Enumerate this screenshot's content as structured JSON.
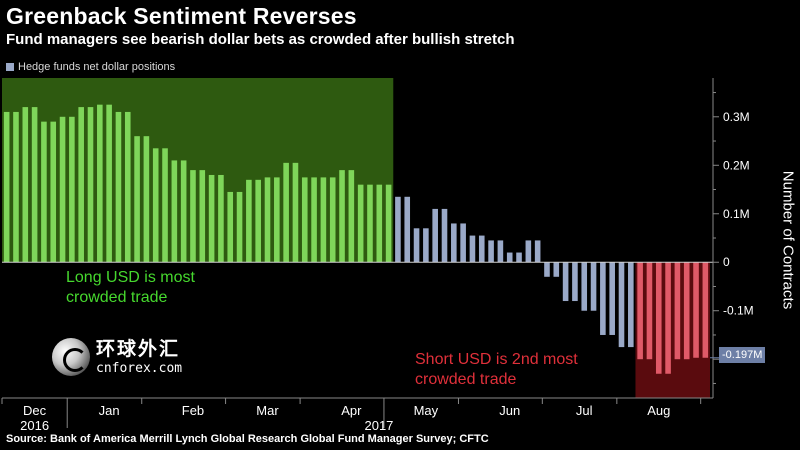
{
  "title": "Greenback Sentiment Reverses",
  "subtitle": "Fund managers see bearish dollar bets as crowded after bullish stretch",
  "legend": {
    "label": "Hedge funds net dollar positions",
    "color": "#9aa9c8"
  },
  "y_axis_label": "Number of Contracts",
  "source": "Source: Bank of America Merrill Lynch Global Research Global Fund Manager Survey; CFTC",
  "annotations": {
    "long": {
      "line1": "Long USD is most",
      "line2": "crowded trade",
      "color": "#46d82e",
      "shade": "#2e5a10"
    },
    "short": {
      "line1": "Short USD is 2nd most",
      "line2": "crowded trade",
      "color": "#e0303a",
      "shade": "#5a0b0e"
    }
  },
  "last_value_tag": "-0.197M",
  "logo": {
    "cn": "环球外汇",
    "en": "cnforex.com"
  },
  "colors": {
    "bar_long_period": "#7fd65a",
    "bar_neutral": "#9aa9c8",
    "bar_short_period": "#e05a68",
    "axis": "#888888",
    "background": "#000000"
  },
  "chart_data": {
    "type": "bar",
    "title": "Greenback Sentiment Reverses",
    "subtitle": "Fund managers see bearish dollar bets as crowded after bullish stretch",
    "ylabel": "Number of Contracts",
    "xlabel": "",
    "ylim": [
      -0.28,
      0.38
    ],
    "y_ticks": [
      {
        "value": 0.3,
        "label": "0.3M"
      },
      {
        "value": 0.2,
        "label": "0.2M"
      },
      {
        "value": 0.1,
        "label": "0.1M"
      },
      {
        "value": 0,
        "label": "0"
      },
      {
        "value": -0.1,
        "label": "-0.1M"
      },
      {
        "value": -0.2,
        "label": "-0.2M"
      }
    ],
    "x_ticks": [
      {
        "label": "Dec",
        "sub": "2016",
        "index": 3
      },
      {
        "label": "Jan",
        "sub": "",
        "index": 11
      },
      {
        "label": "Feb",
        "sub": "",
        "index": 20
      },
      {
        "label": "Mar",
        "sub": "",
        "index": 28
      },
      {
        "label": "Apr",
        "sub": "2017",
        "index": 37
      },
      {
        "label": "May",
        "sub": "",
        "index": 45
      },
      {
        "label": "Jun",
        "sub": "",
        "index": 54
      },
      {
        "label": "Jul",
        "sub": "",
        "index": 62
      },
      {
        "label": "Aug",
        "sub": "",
        "index": 70
      }
    ],
    "series": [
      {
        "name": "Hedge funds net dollar positions",
        "values": [
          0.31,
          0.31,
          0.32,
          0.32,
          0.29,
          0.29,
          0.3,
          0.3,
          0.32,
          0.32,
          0.325,
          0.325,
          0.31,
          0.31,
          0.26,
          0.26,
          0.235,
          0.235,
          0.21,
          0.21,
          0.19,
          0.19,
          0.18,
          0.18,
          0.145,
          0.145,
          0.17,
          0.17,
          0.175,
          0.175,
          0.205,
          0.205,
          0.175,
          0.175,
          0.175,
          0.175,
          0.19,
          0.19,
          0.16,
          0.16,
          0.16,
          0.16,
          0.135,
          0.135,
          0.07,
          0.07,
          0.11,
          0.11,
          0.08,
          0.08,
          0.055,
          0.055,
          0.045,
          0.045,
          0.02,
          0.02,
          0.045,
          0.045,
          -0.03,
          -0.03,
          -0.08,
          -0.08,
          -0.1,
          -0.1,
          -0.15,
          -0.15,
          -0.175,
          -0.175,
          -0.2,
          -0.2,
          -0.23,
          -0.23,
          -0.2,
          -0.2,
          -0.197,
          -0.197
        ]
      }
    ],
    "period_bands": [
      {
        "label": "Long USD is most crowded trade",
        "start_index": 0,
        "end_index": 41,
        "top": 0.38,
        "bottom": 0
      },
      {
        "label": "Short USD is 2nd most crowded trade",
        "start_index": 68,
        "end_index": 75,
        "top": 0,
        "bottom": -0.28
      }
    ],
    "grid": false,
    "legend_position": "top-left"
  }
}
